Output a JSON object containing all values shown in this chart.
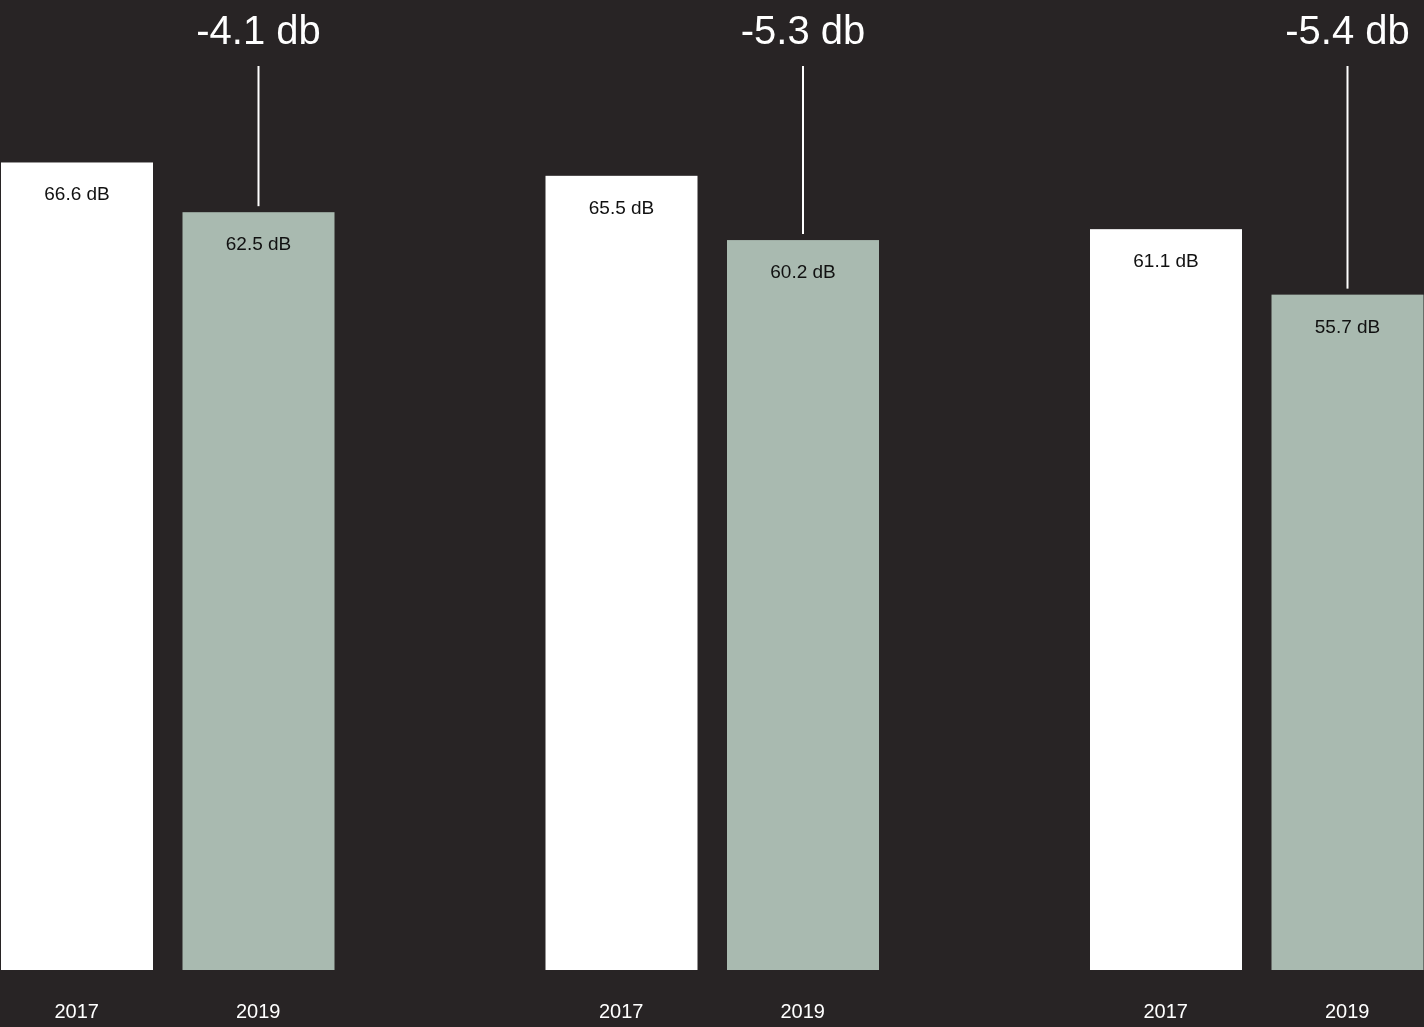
{
  "chart_data": {
    "type": "bar",
    "categories": [
      "2017",
      "2019",
      null,
      "2017",
      "2019",
      null,
      "2017",
      "2019"
    ],
    "values": [
      66.6,
      62.5,
      null,
      65.5,
      60.2,
      null,
      61.1,
      55.7
    ],
    "colors": [
      "#ffffff",
      "#a9bab0",
      null,
      "#ffffff",
      "#a9bab0",
      null,
      "#ffffff",
      "#a9bab0"
    ],
    "value_labels": [
      "66.6 dB",
      "62.5 dB",
      null,
      "65.5 dB",
      "60.2 dB",
      null,
      "61.1 dB",
      "55.7 dB"
    ],
    "annotations": [
      "-4.1 db",
      "-5.3 db",
      "-5.4 db"
    ],
    "ylim": [
      0,
      80
    ],
    "tick_labels": "x"
  }
}
